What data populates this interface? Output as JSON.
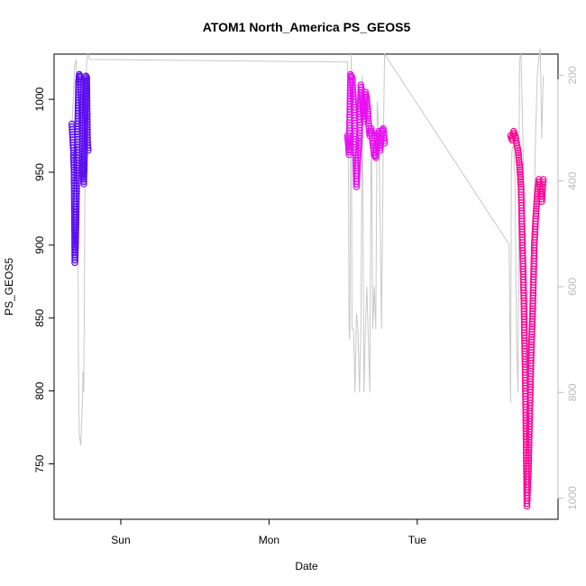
{
  "chart_data": {
    "type": "scatter",
    "title": "ATOM1 North_America PS_GEOS5",
    "xlabel": "Date",
    "ylabel": "PS_GEOS5",
    "x_ticks": [
      "Sun",
      "Mon",
      "Tue"
    ],
    "y_ticks": [
      750,
      800,
      850,
      900,
      950,
      1000
    ],
    "y_right_ticks": [
      200,
      400,
      600,
      800,
      1000
    ],
    "xlim": [
      -0.45,
      2.95
    ],
    "ylim": [
      712,
      1031
    ],
    "y_right_lim": [
      1040,
      160
    ],
    "colors": {
      "segment1": "#5b0ef0",
      "segment2": "#e810f0",
      "segment3": "#fa0a96",
      "altitude_line": "#c8c8c8",
      "axis": "#000000",
      "right_axis": "#bcbcbc"
    },
    "series": [
      {
        "x": [
          -0.33,
          -0.32,
          -0.315,
          -0.31,
          -0.305,
          -0.3,
          -0.295,
          -0.29,
          -0.285,
          -0.28,
          -0.275,
          -0.27,
          -0.265,
          -0.26,
          -0.255,
          -0.25,
          -0.245,
          -0.24,
          -0.235,
          -0.23,
          -0.225,
          -0.22
        ],
        "y": [
          983,
          965,
          950,
          888,
          900,
          930,
          960,
          985,
          1012,
          1017,
          1015,
          1010,
          998,
          975,
          950,
          942,
          960,
          1000,
          1016,
          1015,
          972,
          965
        ]
      },
      {
        "x": [
          1.53,
          1.54,
          1.55,
          1.56,
          1.57,
          1.58,
          1.59,
          1.6,
          1.61,
          1.62,
          1.63,
          1.64,
          1.65,
          1.66,
          1.67,
          1.68,
          1.69,
          1.7,
          1.71,
          1.72,
          1.73,
          1.74,
          1.75,
          1.76,
          1.77,
          1.78
        ],
        "y": [
          975,
          962,
          1017,
          1015,
          1000,
          980,
          940,
          960,
          975,
          1010,
          998,
          985,
          1005,
          1000,
          985,
          975,
          980,
          970,
          962,
          960,
          975,
          978,
          965,
          978,
          980,
          970
        ]
      },
      {
        "x": [
          2.63,
          2.64,
          2.65,
          2.66,
          2.67,
          2.68,
          2.69,
          2.7,
          2.71,
          2.72,
          2.73,
          2.74,
          2.75,
          2.76,
          2.77,
          2.78,
          2.79,
          2.8,
          2.81,
          2.82,
          2.83,
          2.84,
          2.85
        ],
        "y": [
          975,
          972,
          978,
          975,
          970,
          965,
          955,
          940,
          900,
          860,
          800,
          721,
          745,
          790,
          830,
          860,
          900,
          920,
          935,
          945,
          940,
          930,
          945
        ]
      }
    ],
    "altitude_line": {
      "x": [
        -0.33,
        -0.32,
        -0.31,
        -0.3,
        -0.29,
        -0.285,
        -0.28,
        -0.27,
        -0.26,
        -0.255,
        -0.25,
        -0.245,
        -0.24,
        -0.23,
        -0.22,
        -0.21,
        1.53,
        1.535,
        1.54,
        1.545,
        1.55,
        1.555,
        1.56,
        1.57,
        1.58,
        1.59,
        1.6,
        1.61,
        1.62,
        1.63,
        1.64,
        1.65,
        1.66,
        1.67,
        1.68,
        1.69,
        1.7,
        1.71,
        1.72,
        1.73,
        1.74,
        1.75,
        1.76,
        1.77,
        1.78,
        2.62,
        2.63,
        2.635,
        2.64,
        2.65,
        2.66,
        2.67,
        2.68,
        2.69,
        2.7,
        2.71,
        2.72,
        2.73,
        2.74,
        2.75,
        2.76,
        2.77,
        2.78,
        2.79,
        2.8,
        2.81,
        2.82,
        2.83,
        2.84,
        2.85
      ],
      "y": [
        300,
        240,
        180,
        170,
        400,
        760,
        880,
        900,
        830,
        760,
        800,
        580,
        300,
        170,
        160,
        170,
        175,
        360,
        680,
        700,
        400,
        160,
        680,
        680,
        800,
        650,
        680,
        800,
        680,
        200,
        800,
        680,
        600,
        700,
        800,
        260,
        680,
        600,
        680,
        250,
        300,
        480,
        680,
        350,
        160,
        520,
        820,
        380,
        340,
        330,
        400,
        700,
        800,
        170,
        160,
        280,
        420,
        700,
        800,
        760,
        680,
        600,
        550,
        420,
        300,
        200,
        170,
        150,
        320,
        200
      ]
    }
  }
}
